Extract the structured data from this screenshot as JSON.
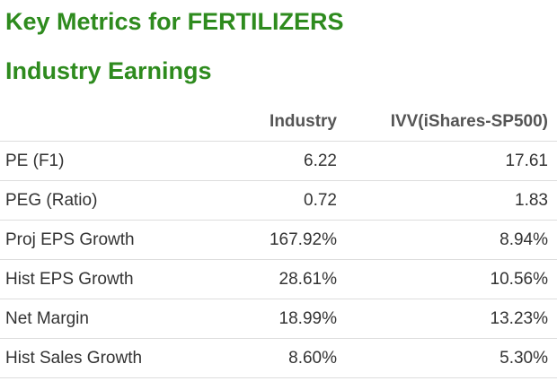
{
  "title_line1": "Key Metrics for FERTILIZERS",
  "title_line2": "Industry Earnings",
  "table": {
    "headers": [
      "",
      "Industry",
      "IVV(iShares-SP500)"
    ],
    "rows": [
      {
        "metric": "PE (F1)",
        "industry": "6.22",
        "ivv": "17.61"
      },
      {
        "metric": "PEG (Ratio)",
        "industry": "0.72",
        "ivv": "1.83"
      },
      {
        "metric": "Proj EPS Growth",
        "industry": "167.92%",
        "ivv": "8.94%"
      },
      {
        "metric": "Hist EPS Growth",
        "industry": "28.61%",
        "ivv": "10.56%"
      },
      {
        "metric": "Net Margin",
        "industry": "18.99%",
        "ivv": "13.23%"
      },
      {
        "metric": "Hist Sales Growth",
        "industry": "8.60%",
        "ivv": "5.30%"
      }
    ]
  },
  "colors": {
    "title": "#2e8b1e",
    "text": "#333333",
    "divider": "#dddddd"
  }
}
